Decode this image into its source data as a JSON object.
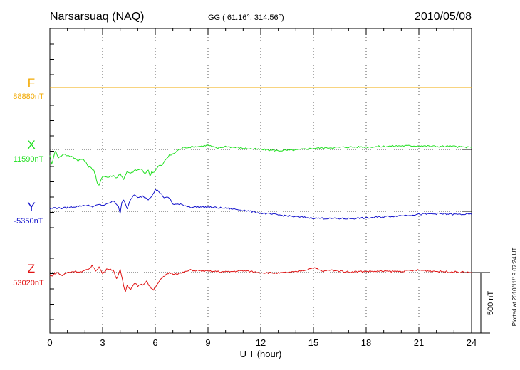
{
  "header": {
    "station": "Narsarsuaq (NAQ)",
    "coords": "GG ( 61.16°, 314.56°)",
    "date": "2010/05/08"
  },
  "footer_note": "Plotted at 2010/11/19 07:24 UT",
  "scale_bar_label": "500 nT",
  "colors": {
    "F": "#f2a900",
    "X": "#22e022",
    "Y": "#1414cc",
    "Z": "#e01414",
    "axis": "#000000",
    "grid": "#555555"
  },
  "chart_data": {
    "type": "line",
    "xlabel": "U T (hour)",
    "xlim": [
      0,
      24
    ],
    "xticks": [
      0,
      3,
      6,
      9,
      12,
      15,
      18,
      21,
      24
    ],
    "minor_xticks_per_hour": 1,
    "grid": "vertical dotted lines every 3 hours; dotted baseline per component",
    "units": "nT",
    "scale_bar_nT": 500,
    "series": [
      {
        "name": "F",
        "baseline_label": "88880nT",
        "baseline_nT": 88880,
        "t": [
          0,
          24
        ],
        "dev_nT": [
          0,
          0
        ]
      },
      {
        "name": "X",
        "baseline_label": "11590nT",
        "baseline_nT": 11590,
        "t": [
          0,
          0.1,
          0.3,
          0.5,
          0.8,
          1.0,
          1.3,
          1.6,
          1.9,
          2.2,
          2.5,
          2.6,
          2.7,
          2.8,
          2.9,
          3.0,
          3.3,
          3.6,
          3.8,
          4.0,
          4.2,
          4.4,
          4.6,
          4.8,
          5.0,
          5.2,
          5.4,
          5.6,
          5.7,
          5.8,
          5.9,
          6.0,
          6.2,
          6.4,
          6.6,
          6.8,
          7.0,
          7.3,
          7.6,
          8.0,
          8.5,
          9.0,
          9.5,
          10.0,
          11.0,
          12.0,
          13.0,
          14.0,
          15.0,
          16.0,
          17.0,
          18.0,
          19.0,
          20.0,
          21.0,
          22.0,
          23.0,
          24.0
        ],
        "dev_nT": [
          -45,
          -125,
          -10,
          -70,
          -35,
          -55,
          -60,
          -90,
          -80,
          -140,
          -170,
          -215,
          -285,
          -300,
          -250,
          -220,
          -230,
          -215,
          -235,
          -200,
          -245,
          -185,
          -200,
          -175,
          -170,
          -160,
          -205,
          -165,
          -225,
          -180,
          -190,
          -175,
          -135,
          -130,
          -80,
          -50,
          -40,
          -5,
          15,
          20,
          25,
          35,
          10,
          25,
          10,
          0,
          -10,
          -5,
          10,
          15,
          20,
          20,
          25,
          30,
          30,
          25,
          25,
          15
        ]
      },
      {
        "name": "Y",
        "baseline_label": "-5350nT",
        "baseline_nT": -5350,
        "t": [
          0,
          0.3,
          0.6,
          1.0,
          1.5,
          2.0,
          2.5,
          2.8,
          3.0,
          3.3,
          3.6,
          3.9,
          4.0,
          4.1,
          4.2,
          4.4,
          4.6,
          4.8,
          5.0,
          5.3,
          5.6,
          5.8,
          6.0,
          6.2,
          6.5,
          6.8,
          7.0,
          7.5,
          8.0,
          9.0,
          10.0,
          11.0,
          12.0,
          13.0,
          14.0,
          15.0,
          16.0,
          17.0,
          18.0,
          19.0,
          20.0,
          21.0,
          22.0,
          23.0,
          24.0
        ],
        "dev_nT": [
          20,
          30,
          25,
          30,
          40,
          50,
          40,
          55,
          50,
          60,
          85,
          45,
          -15,
          70,
          100,
          25,
          95,
          140,
          110,
          125,
          100,
          130,
          180,
          165,
          115,
          110,
          60,
          55,
          35,
          35,
          25,
          10,
          -15,
          -30,
          -45,
          -55,
          -60,
          -60,
          -55,
          -45,
          -35,
          -25,
          -20,
          -25,
          -25
        ]
      },
      {
        "name": "Z",
        "baseline_label": "53020nT",
        "baseline_nT": 53020,
        "t": [
          0,
          0.2,
          0.4,
          0.7,
          1.0,
          1.4,
          1.8,
          2.2,
          2.4,
          2.6,
          2.8,
          3.0,
          3.3,
          3.6,
          3.8,
          4.0,
          4.2,
          4.3,
          4.4,
          4.6,
          4.8,
          5.0,
          5.3,
          5.5,
          5.7,
          5.9,
          6.1,
          6.4,
          6.8,
          7.0,
          7.5,
          8.0,
          9.0,
          10.0,
          11.0,
          12.0,
          13.0,
          14.0,
          14.5,
          15.0,
          15.5,
          16.0,
          17.0,
          18.0,
          19.0,
          20.0,
          21.0,
          22.0,
          23.0,
          24.0
        ],
        "dev_nT": [
          -30,
          -20,
          0,
          -25,
          0,
          10,
          5,
          25,
          60,
          15,
          45,
          -10,
          35,
          20,
          -50,
          20,
          -110,
          -160,
          -100,
          -140,
          -85,
          -110,
          -100,
          -70,
          -120,
          -140,
          -95,
          -45,
          0,
          -10,
          -5,
          20,
          10,
          5,
          15,
          0,
          -5,
          5,
          20,
          40,
          10,
          20,
          5,
          10,
          10,
          10,
          20,
          10,
          5,
          0
        ]
      }
    ]
  }
}
